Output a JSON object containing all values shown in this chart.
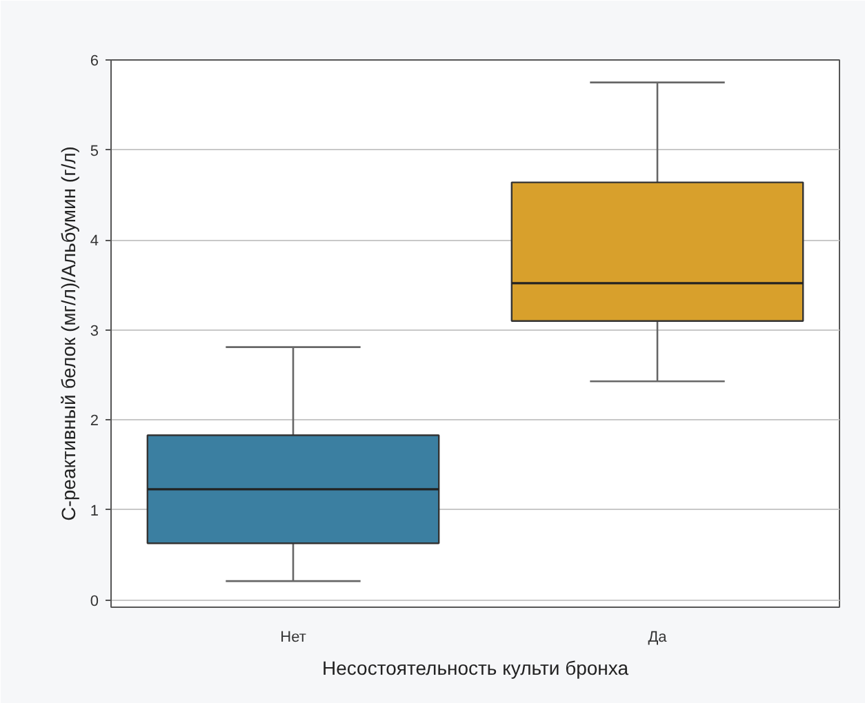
{
  "chart_data": {
    "type": "box",
    "categories": [
      "Нет",
      "Да"
    ],
    "xlabel": "Несостоятельность культи бронха",
    "ylabel": "С-реактивный белок (мг/л)/Альбумин (г/л)",
    "ylim": [
      -0.08,
      6
    ],
    "yticks": [
      0,
      1,
      2,
      3,
      4,
      5,
      6
    ],
    "grid": "y",
    "colors": [
      "#3b7fa1",
      "#d8a02c"
    ],
    "boxes": [
      {
        "low": 0.21,
        "q1": 0.63,
        "median": 1.23,
        "q3": 1.83,
        "high": 2.81
      },
      {
        "low": 2.43,
        "q1": 3.1,
        "median": 3.52,
        "q3": 4.64,
        "high": 5.75
      }
    ]
  }
}
